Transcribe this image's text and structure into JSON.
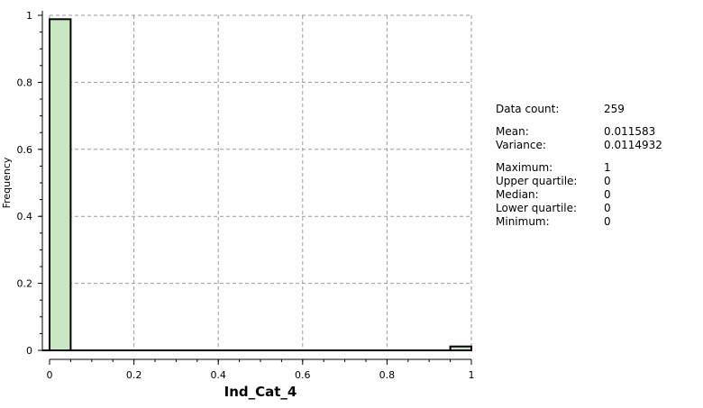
{
  "chart_data": {
    "type": "bar",
    "xlabel": "Ind_Cat_4",
    "ylabel": "Frequency",
    "xlim": [
      0,
      1
    ],
    "ylim": [
      0,
      1
    ],
    "grid": true,
    "x_ticks": [
      "0",
      "0.2",
      "0.4",
      "0.6",
      "0.8",
      "1"
    ],
    "y_ticks": [
      "0",
      "0.2",
      "0.4",
      "0.6",
      "0.8",
      "1"
    ],
    "bins": [
      {
        "x0": 0.0,
        "x1": 0.05,
        "value": 0.9884
      },
      {
        "x0": 0.05,
        "x1": 0.1,
        "value": 0
      },
      {
        "x0": 0.1,
        "x1": 0.15,
        "value": 0
      },
      {
        "x0": 0.15,
        "x1": 0.2,
        "value": 0
      },
      {
        "x0": 0.2,
        "x1": 0.25,
        "value": 0
      },
      {
        "x0": 0.25,
        "x1": 0.3,
        "value": 0
      },
      {
        "x0": 0.3,
        "x1": 0.35,
        "value": 0
      },
      {
        "x0": 0.35,
        "x1": 0.4,
        "value": 0
      },
      {
        "x0": 0.4,
        "x1": 0.45,
        "value": 0
      },
      {
        "x0": 0.45,
        "x1": 0.5,
        "value": 0
      },
      {
        "x0": 0.5,
        "x1": 0.55,
        "value": 0
      },
      {
        "x0": 0.55,
        "x1": 0.6,
        "value": 0
      },
      {
        "x0": 0.6,
        "x1": 0.65,
        "value": 0
      },
      {
        "x0": 0.65,
        "x1": 0.7,
        "value": 0
      },
      {
        "x0": 0.7,
        "x1": 0.75,
        "value": 0
      },
      {
        "x0": 0.75,
        "x1": 0.8,
        "value": 0
      },
      {
        "x0": 0.8,
        "x1": 0.85,
        "value": 0
      },
      {
        "x0": 0.85,
        "x1": 0.9,
        "value": 0
      },
      {
        "x0": 0.9,
        "x1": 0.95,
        "value": 0
      },
      {
        "x0": 0.95,
        "x1": 1.0,
        "value": 0.0116
      }
    ],
    "colors": {
      "bar_fill": "#c9e7c3",
      "bar_stroke": "#000000",
      "grid": "#9a9a9a"
    }
  },
  "stats": [
    {
      "label": "Data count:",
      "value": "259"
    },
    {
      "gap": true
    },
    {
      "label": "Mean:",
      "value": "0.011583"
    },
    {
      "label": "Variance:",
      "value": "0.0114932"
    },
    {
      "gap": true
    },
    {
      "label": "Maximum:",
      "value": "1"
    },
    {
      "label": "Upper quartile:",
      "value": "0"
    },
    {
      "label": "Median:",
      "value": "0"
    },
    {
      "label": "Lower quartile:",
      "value": "0"
    },
    {
      "label": "Minimum:",
      "value": "0"
    }
  ]
}
